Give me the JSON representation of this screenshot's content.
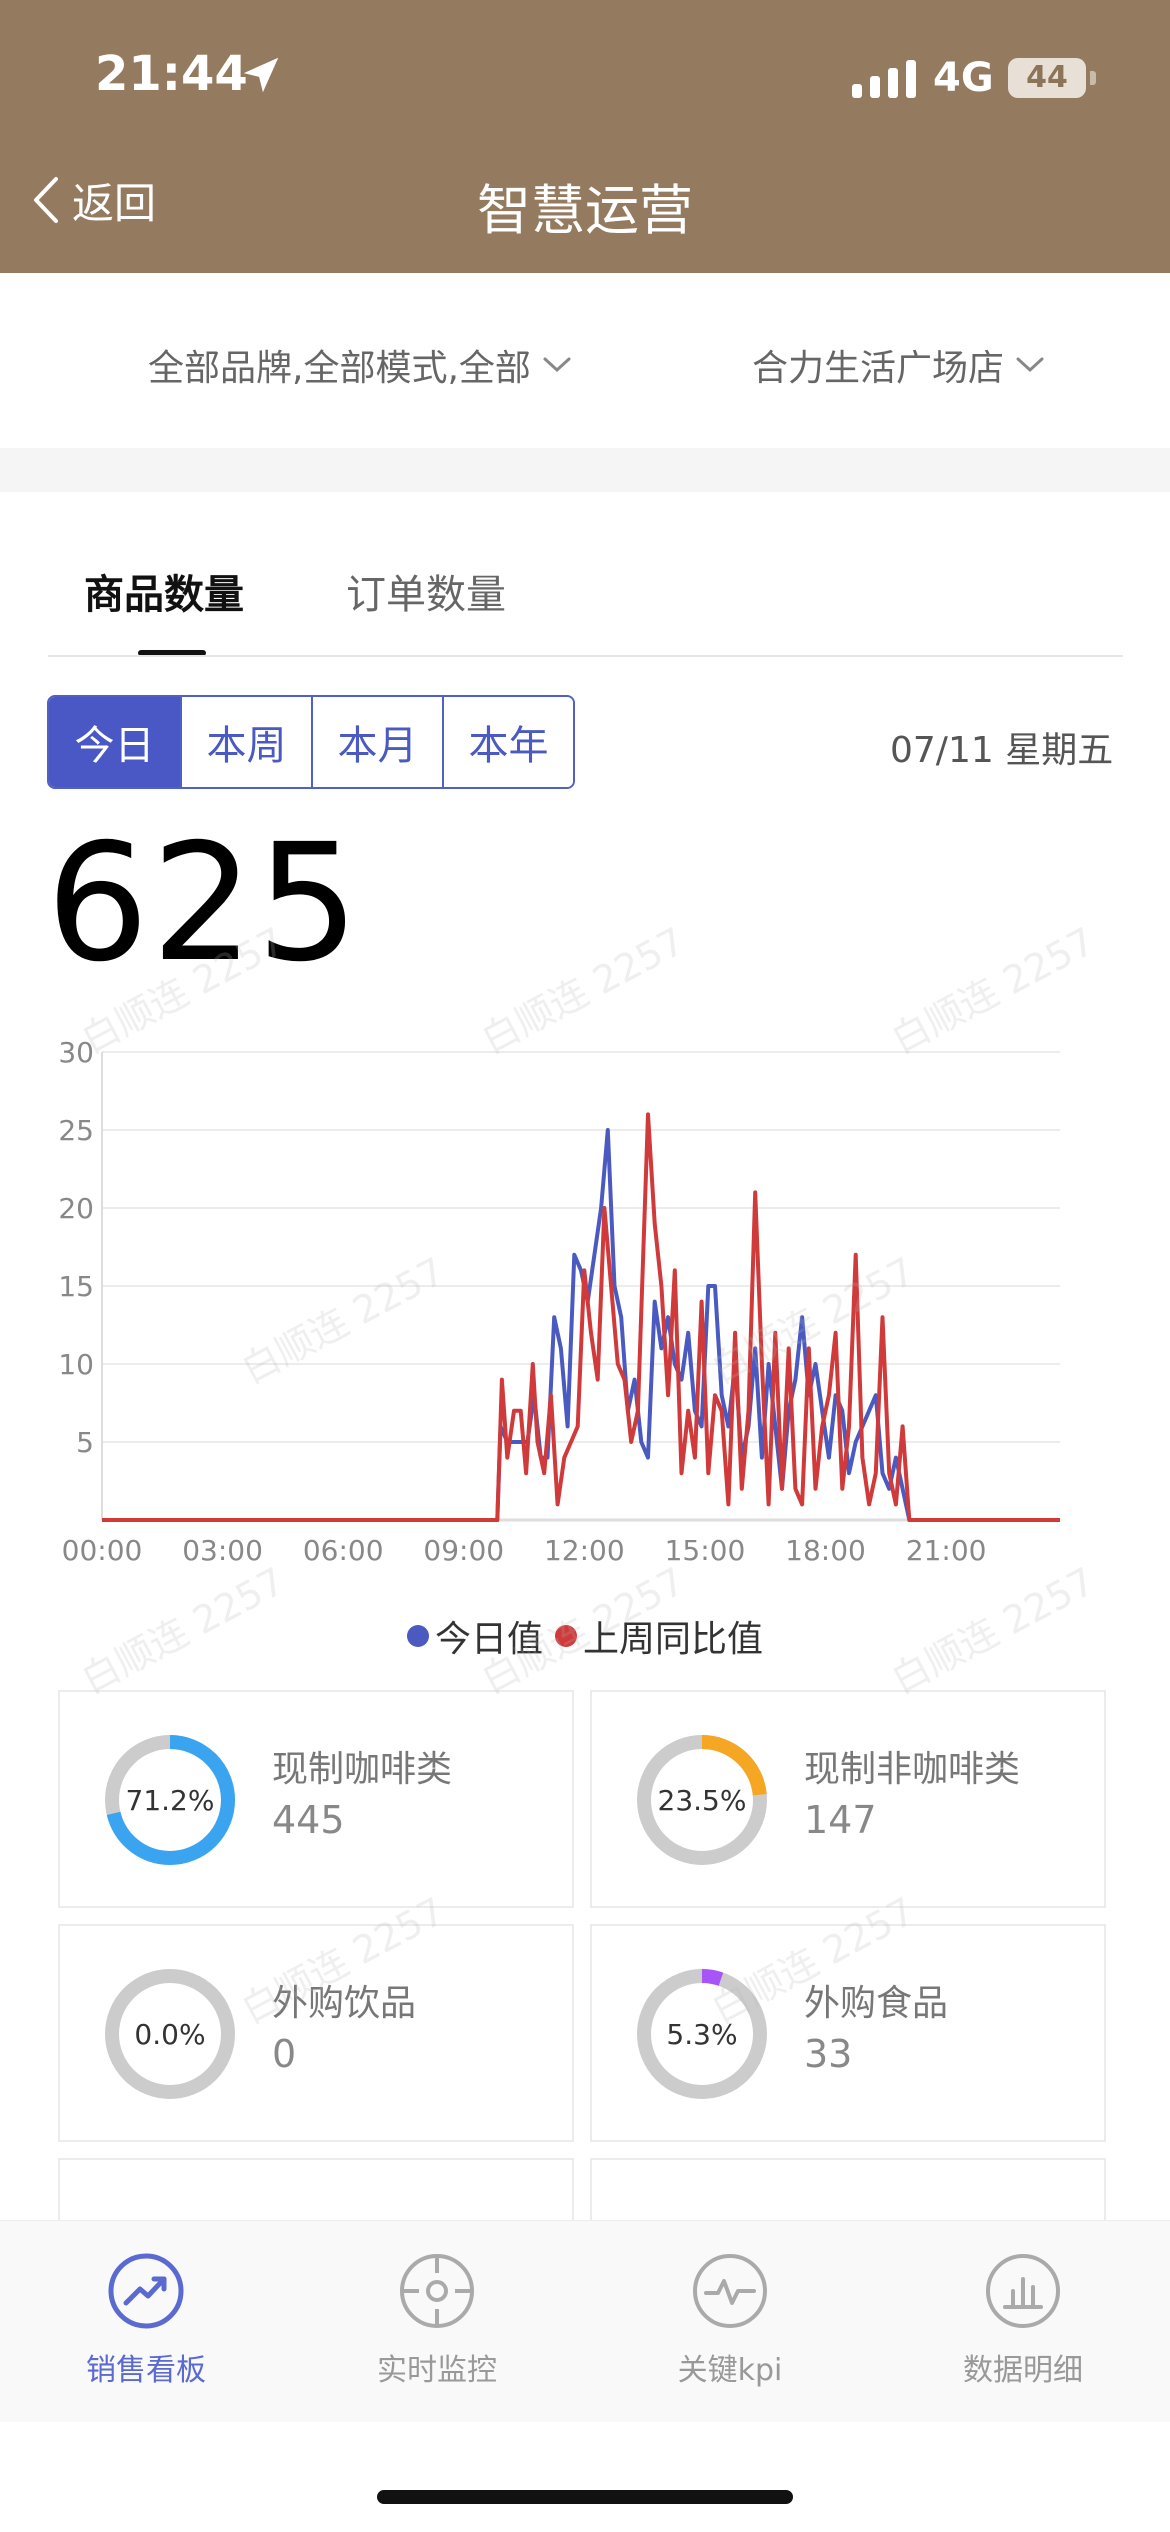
{
  "status_bar": {
    "time": "21:44",
    "network": "4G",
    "battery": "44"
  },
  "nav": {
    "back_label": "返回",
    "title": "智慧运营"
  },
  "filters": {
    "brand": "全部品牌,全部模式,全部",
    "store": "合力生活广场店"
  },
  "tabs": [
    {
      "label": "商品数量",
      "active": true
    },
    {
      "label": "订单数量",
      "active": false
    }
  ],
  "periods": [
    {
      "label": "今日",
      "active": true
    },
    {
      "label": "本周",
      "active": false
    },
    {
      "label": "本月",
      "active": false
    },
    {
      "label": "本年",
      "active": false
    }
  ],
  "date_label": "07/11 星期五",
  "total": "625",
  "chart_data": {
    "type": "line",
    "x_ticks": [
      "00:00",
      "03:00",
      "06:00",
      "09:00",
      "12:00",
      "15:00",
      "18:00",
      "21:00"
    ],
    "y_ticks": [
      "5",
      "10",
      "15",
      "20",
      "25",
      "30"
    ],
    "ylim": [
      0,
      30
    ],
    "xlim_minutes": [
      0,
      1430
    ],
    "grid": true,
    "legend_position": "bottom",
    "series": [
      {
        "name": "今日值",
        "color": "#4a5ac0",
        "points": [
          [
            0,
            0
          ],
          [
            590,
            0
          ],
          [
            595,
            6
          ],
          [
            605,
            5
          ],
          [
            615,
            5
          ],
          [
            625,
            5
          ],
          [
            635,
            5
          ],
          [
            645,
            8
          ],
          [
            655,
            4
          ],
          [
            665,
            4
          ],
          [
            675,
            13
          ],
          [
            685,
            11
          ],
          [
            695,
            6
          ],
          [
            705,
            17
          ],
          [
            715,
            16
          ],
          [
            725,
            14
          ],
          [
            735,
            17
          ],
          [
            745,
            20
          ],
          [
            755,
            25
          ],
          [
            765,
            15
          ],
          [
            775,
            13
          ],
          [
            785,
            7
          ],
          [
            795,
            9
          ],
          [
            805,
            5
          ],
          [
            815,
            4
          ],
          [
            825,
            14
          ],
          [
            835,
            11
          ],
          [
            845,
            13
          ],
          [
            855,
            10
          ],
          [
            865,
            9
          ],
          [
            875,
            12
          ],
          [
            885,
            7
          ],
          [
            895,
            6
          ],
          [
            905,
            15
          ],
          [
            915,
            15
          ],
          [
            925,
            8
          ],
          [
            935,
            6
          ],
          [
            945,
            10
          ],
          [
            955,
            4
          ],
          [
            965,
            6
          ],
          [
            975,
            11
          ],
          [
            985,
            4
          ],
          [
            995,
            10
          ],
          [
            1005,
            6
          ],
          [
            1015,
            2
          ],
          [
            1025,
            7
          ],
          [
            1035,
            9
          ],
          [
            1045,
            13
          ],
          [
            1055,
            8
          ],
          [
            1065,
            10
          ],
          [
            1075,
            7
          ],
          [
            1085,
            4
          ],
          [
            1095,
            8
          ],
          [
            1105,
            7
          ],
          [
            1115,
            3
          ],
          [
            1125,
            5
          ],
          [
            1135,
            6
          ],
          [
            1145,
            7
          ],
          [
            1155,
            8
          ],
          [
            1165,
            3
          ],
          [
            1175,
            2
          ],
          [
            1185,
            4
          ],
          [
            1195,
            2
          ],
          [
            1205,
            0
          ],
          [
            1430,
            0
          ]
        ]
      },
      {
        "name": "上周同比值",
        "color": "#d03a3a",
        "points": [
          [
            0,
            0
          ],
          [
            590,
            0
          ],
          [
            597,
            9
          ],
          [
            605,
            4
          ],
          [
            615,
            7
          ],
          [
            625,
            7
          ],
          [
            633,
            3
          ],
          [
            643,
            10
          ],
          [
            650,
            5
          ],
          [
            660,
            3
          ],
          [
            670,
            8
          ],
          [
            680,
            1
          ],
          [
            690,
            4
          ],
          [
            700,
            5
          ],
          [
            710,
            6
          ],
          [
            720,
            16
          ],
          [
            730,
            12
          ],
          [
            740,
            9
          ],
          [
            750,
            20
          ],
          [
            760,
            15
          ],
          [
            770,
            10
          ],
          [
            780,
            9
          ],
          [
            790,
            5
          ],
          [
            800,
            7
          ],
          [
            815,
            26
          ],
          [
            825,
            19
          ],
          [
            835,
            15
          ],
          [
            845,
            8
          ],
          [
            855,
            16
          ],
          [
            865,
            3
          ],
          [
            875,
            7
          ],
          [
            885,
            4
          ],
          [
            895,
            14
          ],
          [
            905,
            3
          ],
          [
            915,
            8
          ],
          [
            925,
            7
          ],
          [
            935,
            1
          ],
          [
            945,
            12
          ],
          [
            955,
            2
          ],
          [
            965,
            7
          ],
          [
            975,
            21
          ],
          [
            985,
            10
          ],
          [
            995,
            1
          ],
          [
            1005,
            12
          ],
          [
            1015,
            2
          ],
          [
            1025,
            11
          ],
          [
            1035,
            2
          ],
          [
            1045,
            1
          ],
          [
            1055,
            11
          ],
          [
            1065,
            2
          ],
          [
            1075,
            6
          ],
          [
            1085,
            8
          ],
          [
            1095,
            12
          ],
          [
            1105,
            2
          ],
          [
            1115,
            6
          ],
          [
            1125,
            17
          ],
          [
            1135,
            4
          ],
          [
            1145,
            1
          ],
          [
            1155,
            3
          ],
          [
            1165,
            13
          ],
          [
            1175,
            3
          ],
          [
            1185,
            1
          ],
          [
            1195,
            6
          ],
          [
            1205,
            0
          ],
          [
            1430,
            0
          ]
        ]
      }
    ]
  },
  "categories": [
    {
      "name": "现制咖啡类",
      "percent": "71.2%",
      "ratio": 0.712,
      "value": "445",
      "color": "#3aa4f0"
    },
    {
      "name": "现制非咖啡类",
      "percent": "23.5%",
      "ratio": 0.235,
      "value": "147",
      "color": "#f5a623"
    },
    {
      "name": "外购饮品",
      "percent": "0.0%",
      "ratio": 0.0,
      "value": "0",
      "color": "#4a90e2"
    },
    {
      "name": "外购食品",
      "percent": "5.3%",
      "ratio": 0.053,
      "value": "33",
      "color": "#a855f7"
    }
  ],
  "bottom_tabs": [
    {
      "label": "销售看板",
      "icon": "trend-icon",
      "active": true
    },
    {
      "label": "实时监控",
      "icon": "target-icon",
      "active": false
    },
    {
      "label": "关键kpi",
      "icon": "pulse-icon",
      "active": false
    },
    {
      "label": "数据明细",
      "icon": "bar-chart-icon",
      "active": false
    }
  ]
}
